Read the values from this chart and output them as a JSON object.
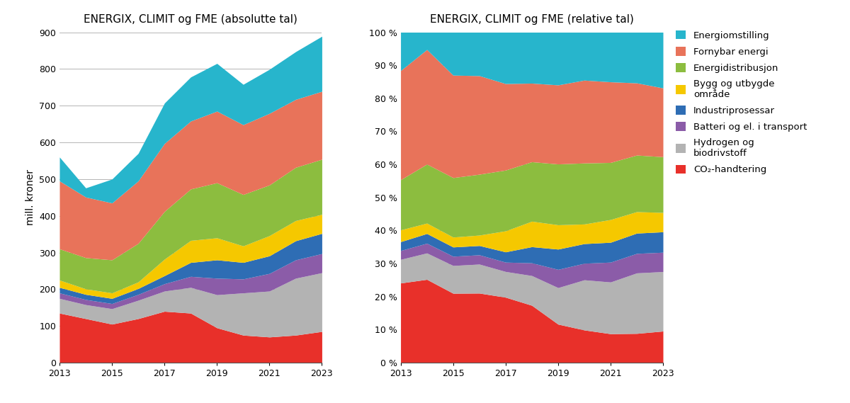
{
  "years": [
    2013,
    2014,
    2015,
    2016,
    2017,
    2018,
    2019,
    2020,
    2021,
    2022,
    2023
  ],
  "title_abs": "ENERGIX, CLIMIT og FME (absolutte tal)",
  "title_rel": "ENERGIX, CLIMIT og FME (relative tal)",
  "ylabel_abs": "mill. kroner",
  "categories": [
    "CO₂-handtering",
    "Hydrogen og biodrivstoff",
    "Batteri og el. i transport",
    "Industriprosessar",
    "Bygg og utbygde område",
    "Energidistribusjon",
    "Fornybar energi",
    "Energiomstilling"
  ],
  "colors": [
    "#e8302a",
    "#b3b3b3",
    "#8b5ca8",
    "#2e6db4",
    "#f5c800",
    "#8cbd3f",
    "#e8735a",
    "#27b5cc"
  ],
  "data": {
    "CO2": [
      135,
      120,
      105,
      120,
      140,
      135,
      95,
      75,
      70,
      75,
      85
    ],
    "Hydrogen": [
      40,
      38,
      42,
      50,
      55,
      70,
      90,
      115,
      125,
      155,
      160
    ],
    "Batteri": [
      15,
      14,
      14,
      16,
      20,
      30,
      45,
      38,
      48,
      50,
      52
    ],
    "Industri": [
      15,
      14,
      14,
      16,
      22,
      38,
      50,
      45,
      48,
      52,
      55
    ],
    "Bygg": [
      20,
      15,
      15,
      18,
      45,
      60,
      60,
      45,
      55,
      55,
      52
    ],
    "Energidist": [
      85,
      85,
      90,
      105,
      130,
      140,
      150,
      140,
      138,
      145,
      150
    ],
    "Fornybar": [
      185,
      165,
      155,
      170,
      185,
      185,
      195,
      190,
      195,
      185,
      185
    ],
    "Energiomst": [
      65,
      25,
      65,
      75,
      110,
      120,
      130,
      110,
      120,
      130,
      150
    ]
  },
  "legend_labels": [
    "Energiomstilling",
    "Fornybar energi",
    "Energidistribusjon",
    "Bygg og utbygde\nområde",
    "Industriprosessar",
    "Batteri og el. i transport",
    "Hydrogen og\nbiodrivstoff",
    "CO₂-handtering"
  ],
  "legend_colors": [
    "#27b5cc",
    "#e8735a",
    "#8cbd3f",
    "#f5c800",
    "#2e6db4",
    "#8b5ca8",
    "#b3b3b3",
    "#e8302a"
  ]
}
